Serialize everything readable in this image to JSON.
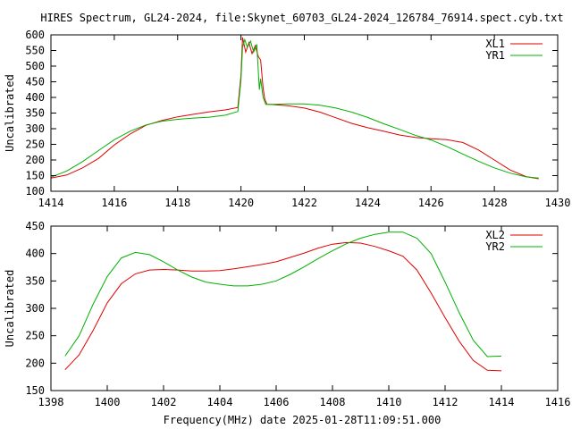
{
  "title": "HIRES Spectrum, GL24-2024, file:Skynet_60703_GL24-2024_126784_76914.spect.cyb.txt",
  "xlabel": "Frequency(MHz) date 2025-01-28T11:09:51.000",
  "colors": {
    "red": "#e00000",
    "green": "#00b000"
  },
  "chart_data": [
    {
      "type": "line",
      "title": "HIRES Spectrum, GL24-2024, file:Skynet_60703_GL24-2024_126784_76914.spect.cyb.txt",
      "ylabel": "Uncalibrated",
      "xlabel": "",
      "xlim": [
        1414,
        1430
      ],
      "ylim": [
        100,
        600
      ],
      "xticks": [
        "1414",
        "1416",
        "1418",
        "1420",
        "1422",
        "1424",
        "1426",
        "1428",
        "1430"
      ],
      "yticks": [
        "100",
        "150",
        "200",
        "250",
        "300",
        "350",
        "400",
        "450",
        "500",
        "550",
        "600"
      ],
      "grid": false,
      "legend_position": "top-right",
      "series": [
        {
          "name": "XL1",
          "color": "#e00000",
          "points": [
            [
              1414.0,
              142
            ],
            [
              1414.5,
              152
            ],
            [
              1415.0,
              175
            ],
            [
              1415.5,
              205
            ],
            [
              1416.0,
              248
            ],
            [
              1416.5,
              283
            ],
            [
              1417.0,
              311
            ],
            [
              1417.5,
              326
            ],
            [
              1418.0,
              338
            ],
            [
              1418.5,
              346
            ],
            [
              1419.0,
              354
            ],
            [
              1419.5,
              360
            ],
            [
              1419.9,
              368
            ],
            [
              1420.0,
              470
            ],
            [
              1420.05,
              592
            ],
            [
              1420.15,
              545
            ],
            [
              1420.25,
              575
            ],
            [
              1420.35,
              540
            ],
            [
              1420.45,
              565
            ],
            [
              1420.55,
              530
            ],
            [
              1420.62,
              520
            ],
            [
              1420.7,
              430
            ],
            [
              1420.75,
              395
            ],
            [
              1420.82,
              378
            ],
            [
              1421.0,
              377
            ],
            [
              1421.5,
              373
            ],
            [
              1422.0,
              366
            ],
            [
              1422.5,
              353
            ],
            [
              1423.0,
              335
            ],
            [
              1423.5,
              317
            ],
            [
              1424.0,
              303
            ],
            [
              1424.5,
              292
            ],
            [
              1425.0,
              280
            ],
            [
              1425.5,
              272
            ],
            [
              1426.0,
              268
            ],
            [
              1426.5,
              265
            ],
            [
              1427.0,
              256
            ],
            [
              1427.5,
              232
            ],
            [
              1428.0,
              200
            ],
            [
              1428.5,
              168
            ],
            [
              1429.0,
              147
            ],
            [
              1429.4,
              140
            ]
          ]
        },
        {
          "name": "YR1",
          "color": "#00b000",
          "points": [
            [
              1414.0,
              145
            ],
            [
              1414.5,
              165
            ],
            [
              1415.0,
              195
            ],
            [
              1415.5,
              230
            ],
            [
              1416.0,
              265
            ],
            [
              1416.5,
              292
            ],
            [
              1417.0,
              312
            ],
            [
              1417.5,
              324
            ],
            [
              1418.0,
              330
            ],
            [
              1418.5,
              334
            ],
            [
              1419.0,
              337
            ],
            [
              1419.5,
              343
            ],
            [
              1419.9,
              355
            ],
            [
              1420.0,
              455
            ],
            [
              1420.05,
              560
            ],
            [
              1420.12,
              585
            ],
            [
              1420.2,
              560
            ],
            [
              1420.3,
              580
            ],
            [
              1420.4,
              545
            ],
            [
              1420.5,
              570
            ],
            [
              1420.58,
              425
            ],
            [
              1420.62,
              460
            ],
            [
              1420.7,
              400
            ],
            [
              1420.78,
              378
            ],
            [
              1421.0,
              378
            ],
            [
              1421.5,
              379
            ],
            [
              1422.0,
              379
            ],
            [
              1422.5,
              375
            ],
            [
              1423.0,
              366
            ],
            [
              1423.5,
              353
            ],
            [
              1424.0,
              336
            ],
            [
              1424.5,
              316
            ],
            [
              1425.0,
              298
            ],
            [
              1425.5,
              279
            ],
            [
              1426.0,
              264
            ],
            [
              1426.5,
              243
            ],
            [
              1427.0,
              219
            ],
            [
              1427.5,
              196
            ],
            [
              1428.0,
              175
            ],
            [
              1428.5,
              158
            ],
            [
              1429.0,
              146
            ],
            [
              1429.4,
              142
            ]
          ]
        }
      ]
    },
    {
      "type": "line",
      "title": "",
      "ylabel": "Uncalibrated",
      "xlabel": "Frequency(MHz) date 2025-01-28T11:09:51.000",
      "xlim": [
        1398,
        1416
      ],
      "ylim": [
        150,
        450
      ],
      "xticks": [
        "1398",
        "1400",
        "1402",
        "1404",
        "1406",
        "1408",
        "1410",
        "1412",
        "1414",
        "1416"
      ],
      "yticks": [
        "150",
        "200",
        "250",
        "300",
        "350",
        "400",
        "450"
      ],
      "grid": false,
      "legend_position": "top-right",
      "series": [
        {
          "name": "XL2",
          "color": "#e00000",
          "points": [
            [
              1398.5,
              188
            ],
            [
              1399.0,
              215
            ],
            [
              1399.5,
              260
            ],
            [
              1400.0,
              310
            ],
            [
              1400.5,
              345
            ],
            [
              1401.0,
              363
            ],
            [
              1401.5,
              370
            ],
            [
              1402.0,
              371
            ],
            [
              1402.5,
              370
            ],
            [
              1403.0,
              368
            ],
            [
              1403.5,
              368
            ],
            [
              1404.0,
              369
            ],
            [
              1404.5,
              372
            ],
            [
              1405.0,
              376
            ],
            [
              1405.5,
              380
            ],
            [
              1406.0,
              385
            ],
            [
              1406.5,
              393
            ],
            [
              1407.0,
              401
            ],
            [
              1407.5,
              410
            ],
            [
              1408.0,
              417
            ],
            [
              1408.5,
              420
            ],
            [
              1409.0,
              419
            ],
            [
              1409.5,
              413
            ],
            [
              1410.0,
              405
            ],
            [
              1410.5,
              395
            ],
            [
              1411.0,
              370
            ],
            [
              1411.5,
              328
            ],
            [
              1412.0,
              283
            ],
            [
              1412.5,
              240
            ],
            [
              1413.0,
              205
            ],
            [
              1413.5,
              187
            ],
            [
              1414.0,
              186
            ]
          ]
        },
        {
          "name": "YR2",
          "color": "#00b000",
          "points": [
            [
              1398.5,
              213
            ],
            [
              1399.0,
              250
            ],
            [
              1399.5,
              308
            ],
            [
              1400.0,
              358
            ],
            [
              1400.5,
              392
            ],
            [
              1401.0,
              402
            ],
            [
              1401.5,
              398
            ],
            [
              1402.0,
              385
            ],
            [
              1402.5,
              370
            ],
            [
              1403.0,
              357
            ],
            [
              1403.5,
              348
            ],
            [
              1404.0,
              344
            ],
            [
              1404.5,
              341
            ],
            [
              1405.0,
              341
            ],
            [
              1405.5,
              344
            ],
            [
              1406.0,
              350
            ],
            [
              1406.5,
              362
            ],
            [
              1407.0,
              376
            ],
            [
              1407.5,
              391
            ],
            [
              1408.0,
              405
            ],
            [
              1408.5,
              418
            ],
            [
              1409.0,
              428
            ],
            [
              1409.5,
              435
            ],
            [
              1410.0,
              439
            ],
            [
              1410.5,
              439
            ],
            [
              1411.0,
              428
            ],
            [
              1411.5,
              400
            ],
            [
              1412.0,
              348
            ],
            [
              1412.5,
              292
            ],
            [
              1413.0,
              242
            ],
            [
              1413.5,
              212
            ],
            [
              1414.0,
              213
            ]
          ]
        }
      ]
    }
  ]
}
